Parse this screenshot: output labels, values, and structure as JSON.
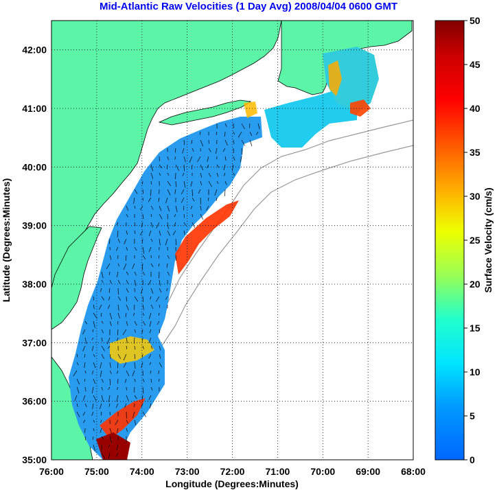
{
  "title": "Mid-Atlantic Raw Velocities (1 Day Avg) 2008/04/04 0600 GMT",
  "map": {
    "xlabel": "Longitude (Degrees:Minutes)",
    "ylabel": "Latitude (Degrees:Minutes)",
    "lon_range": [
      -76,
      -68
    ],
    "lat_range": [
      35,
      42.5
    ],
    "lon_ticks": [
      {
        "value": -76,
        "label": "76:00"
      },
      {
        "value": -75,
        "label": "75:00"
      },
      {
        "value": -74,
        "label": "74:00"
      },
      {
        "value": -73,
        "label": "73:00"
      },
      {
        "value": -72,
        "label": "72:00"
      },
      {
        "value": -71,
        "label": "71:00"
      },
      {
        "value": -70,
        "label": "70:00"
      },
      {
        "value": -69,
        "label": "69:00"
      },
      {
        "value": -68,
        "label": "68:00"
      }
    ],
    "lat_ticks": [
      {
        "value": 35,
        "label": "35:00"
      },
      {
        "value": 36,
        "label": "36:00"
      },
      {
        "value": 37,
        "label": "37:00"
      },
      {
        "value": 38,
        "label": "38:00"
      },
      {
        "value": 39,
        "label": "39:00"
      },
      {
        "value": 40,
        "label": "40:00"
      },
      {
        "value": 41,
        "label": "41:00"
      },
      {
        "value": 42,
        "label": "42:00"
      }
    ],
    "grid": "dotted",
    "land_color": "#5cf5a8"
  },
  "colorbar": {
    "label": "Surface Velocity (cm/s)",
    "range": [
      0,
      50
    ],
    "ticks": [
      {
        "value": 0,
        "label": "0"
      },
      {
        "value": 5,
        "label": "5"
      },
      {
        "value": 10,
        "label": "10"
      },
      {
        "value": 15,
        "label": "15"
      },
      {
        "value": 20,
        "label": "20"
      },
      {
        "value": 25,
        "label": "25"
      },
      {
        "value": 30,
        "label": "30"
      },
      {
        "value": 35,
        "label": "35"
      },
      {
        "value": 40,
        "label": "40"
      },
      {
        "value": 45,
        "label": "45"
      },
      {
        "value": 50,
        "label": "50"
      }
    ],
    "colormap": "jet"
  }
}
